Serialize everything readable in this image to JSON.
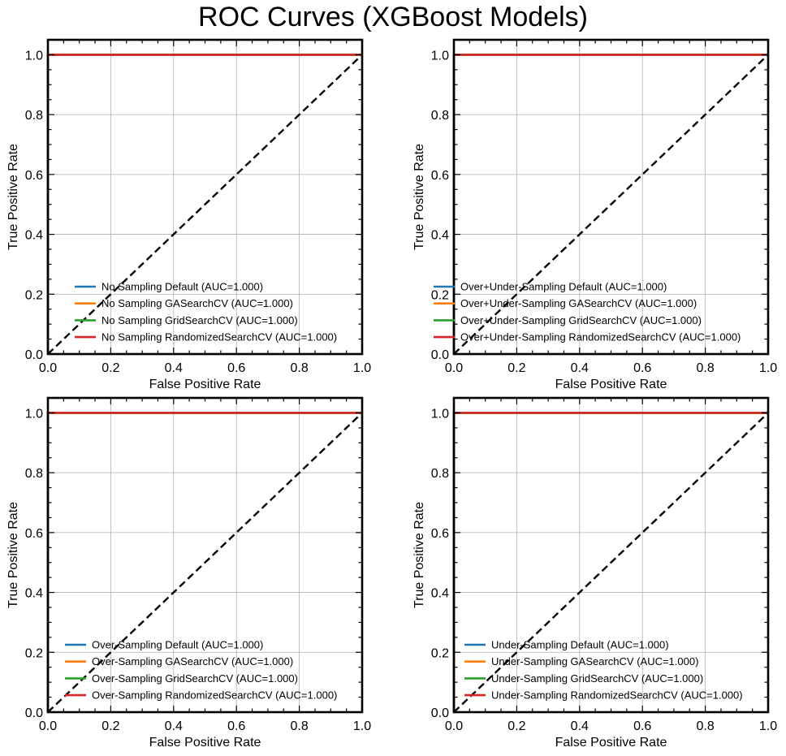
{
  "figure": {
    "title": "ROC Curves (XGBoost Models)"
  },
  "chart_data": [
    {
      "type": "line",
      "xlabel": "False Positive Rate",
      "ylabel": "True Positive Rate",
      "xlim": [
        0,
        1
      ],
      "ylim": [
        0,
        1.05
      ],
      "xticks": [
        "0.0",
        "0.2",
        "0.4",
        "0.6",
        "0.8",
        "1.0"
      ],
      "yticks": [
        "0.0",
        "0.2",
        "0.4",
        "0.6",
        "0.8",
        "1.0"
      ],
      "grid": true,
      "legend_position": "lower-right",
      "series": [
        {
          "name": "No Sampling Default (AUC=1.000)",
          "color": "#1f77b4",
          "x": [
            0,
            0,
            1
          ],
          "y": [
            0,
            1,
            1
          ]
        },
        {
          "name": "No Sampling GASearchCV (AUC=1.000)",
          "color": "#ff7f0e",
          "x": [
            0,
            0,
            1
          ],
          "y": [
            0,
            1,
            1
          ]
        },
        {
          "name": "No Sampling GridSearchCV (AUC=1.000)",
          "color": "#2ca02c",
          "x": [
            0,
            0,
            1
          ],
          "y": [
            0,
            1,
            1
          ]
        },
        {
          "name": "No Sampling RandomizedSearchCV (AUC=1.000)",
          "color": "#d62728",
          "x": [
            0,
            0,
            1
          ],
          "y": [
            0,
            1,
            1
          ]
        }
      ],
      "reference_line": {
        "x": [
          0,
          1
        ],
        "y": [
          0,
          1
        ],
        "color": "#000000",
        "style": "dashed"
      }
    },
    {
      "type": "line",
      "xlabel": "False Positive Rate",
      "ylabel": "True Positive Rate",
      "xlim": [
        0,
        1
      ],
      "ylim": [
        0,
        1.05
      ],
      "xticks": [
        "0.0",
        "0.2",
        "0.4",
        "0.6",
        "0.8",
        "1.0"
      ],
      "yticks": [
        "0.0",
        "0.2",
        "0.4",
        "0.6",
        "0.8",
        "1.0"
      ],
      "grid": true,
      "legend_position": "lower-right",
      "series": [
        {
          "name": "Over+Under-Sampling Default (AUC=1.000)",
          "color": "#1f77b4",
          "x": [
            0,
            0,
            1
          ],
          "y": [
            0,
            1,
            1
          ]
        },
        {
          "name": "Over+Under-Sampling GASearchCV (AUC=1.000)",
          "color": "#ff7f0e",
          "x": [
            0,
            0,
            1
          ],
          "y": [
            0,
            1,
            1
          ]
        },
        {
          "name": "Over+Under-Sampling GridSearchCV (AUC=1.000)",
          "color": "#2ca02c",
          "x": [
            0,
            0,
            1
          ],
          "y": [
            0,
            1,
            1
          ]
        },
        {
          "name": "Over+Under-Sampling RandomizedSearchCV (AUC=1.000)",
          "color": "#d62728",
          "x": [
            0,
            0,
            1
          ],
          "y": [
            0,
            1,
            1
          ]
        }
      ],
      "reference_line": {
        "x": [
          0,
          1
        ],
        "y": [
          0,
          1
        ],
        "color": "#000000",
        "style": "dashed"
      }
    },
    {
      "type": "line",
      "xlabel": "False Positive Rate",
      "ylabel": "True Positive Rate",
      "xlim": [
        0,
        1
      ],
      "ylim": [
        0,
        1.05
      ],
      "xticks": [
        "0.0",
        "0.2",
        "0.4",
        "0.6",
        "0.8",
        "1.0"
      ],
      "yticks": [
        "0.0",
        "0.2",
        "0.4",
        "0.6",
        "0.8",
        "1.0"
      ],
      "grid": true,
      "legend_position": "lower-right",
      "series": [
        {
          "name": "Over-Sampling Default (AUC=1.000)",
          "color": "#1f77b4",
          "x": [
            0,
            0,
            1
          ],
          "y": [
            0,
            1,
            1
          ]
        },
        {
          "name": "Over-Sampling GASearchCV (AUC=1.000)",
          "color": "#ff7f0e",
          "x": [
            0,
            0,
            1
          ],
          "y": [
            0,
            1,
            1
          ]
        },
        {
          "name": "Over-Sampling GridSearchCV (AUC=1.000)",
          "color": "#2ca02c",
          "x": [
            0,
            0,
            1
          ],
          "y": [
            0,
            1,
            1
          ]
        },
        {
          "name": "Over-Sampling RandomizedSearchCV (AUC=1.000)",
          "color": "#d62728",
          "x": [
            0,
            0,
            1
          ],
          "y": [
            0,
            1,
            1
          ]
        }
      ],
      "reference_line": {
        "x": [
          0,
          1
        ],
        "y": [
          0,
          1
        ],
        "color": "#000000",
        "style": "dashed"
      }
    },
    {
      "type": "line",
      "xlabel": "False Positive Rate",
      "ylabel": "True Positive Rate",
      "xlim": [
        0,
        1
      ],
      "ylim": [
        0,
        1.05
      ],
      "xticks": [
        "0.0",
        "0.2",
        "0.4",
        "0.6",
        "0.8",
        "1.0"
      ],
      "yticks": [
        "0.0",
        "0.2",
        "0.4",
        "0.6",
        "0.8",
        "1.0"
      ],
      "grid": true,
      "legend_position": "lower-right",
      "series": [
        {
          "name": "Under-Sampling Default (AUC=1.000)",
          "color": "#1f77b4",
          "x": [
            0,
            0,
            1
          ],
          "y": [
            0,
            1,
            1
          ]
        },
        {
          "name": "Under-Sampling GASearchCV (AUC=1.000)",
          "color": "#ff7f0e",
          "x": [
            0,
            0,
            1
          ],
          "y": [
            0,
            1,
            1
          ]
        },
        {
          "name": "Under-Sampling GridSearchCV (AUC=1.000)",
          "color": "#2ca02c",
          "x": [
            0,
            0,
            1
          ],
          "y": [
            0,
            1,
            1
          ]
        },
        {
          "name": "Under-Sampling RandomizedSearchCV (AUC=1.000)",
          "color": "#d62728",
          "x": [
            0,
            0,
            1
          ],
          "y": [
            0,
            1,
            1
          ]
        }
      ],
      "reference_line": {
        "x": [
          0,
          1
        ],
        "y": [
          0,
          1
        ],
        "color": "#000000",
        "style": "dashed"
      }
    }
  ]
}
